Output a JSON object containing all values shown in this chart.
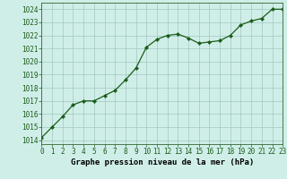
{
  "x": [
    0,
    1,
    2,
    3,
    4,
    5,
    6,
    7,
    8,
    9,
    10,
    11,
    12,
    13,
    14,
    15,
    16,
    17,
    18,
    19,
    20,
    21,
    22,
    23
  ],
  "y": [
    1014.2,
    1015.0,
    1015.8,
    1016.7,
    1017.0,
    1017.0,
    1017.4,
    1017.8,
    1018.6,
    1019.5,
    1021.1,
    1021.7,
    1022.0,
    1022.1,
    1021.8,
    1021.4,
    1021.5,
    1021.6,
    1022.0,
    1022.8,
    1023.1,
    1023.3,
    1024.0,
    1024.0
  ],
  "line_color": "#1a5c1a",
  "marker": "D",
  "marker_size": 2.2,
  "bg_color": "#d0eee8",
  "grid_major_color": "#a0c8c0",
  "grid_minor_color": "#b8ddd8",
  "xlabel": "Graphe pression niveau de la mer (hPa)",
  "xlabel_fontsize": 6.5,
  "ylabel_ticks": [
    1014,
    1015,
    1016,
    1017,
    1018,
    1019,
    1020,
    1021,
    1022,
    1023,
    1024
  ],
  "xlim": [
    0,
    23
  ],
  "ylim": [
    1013.7,
    1024.5
  ],
  "tick_fontsize": 5.5,
  "linewidth": 0.9
}
